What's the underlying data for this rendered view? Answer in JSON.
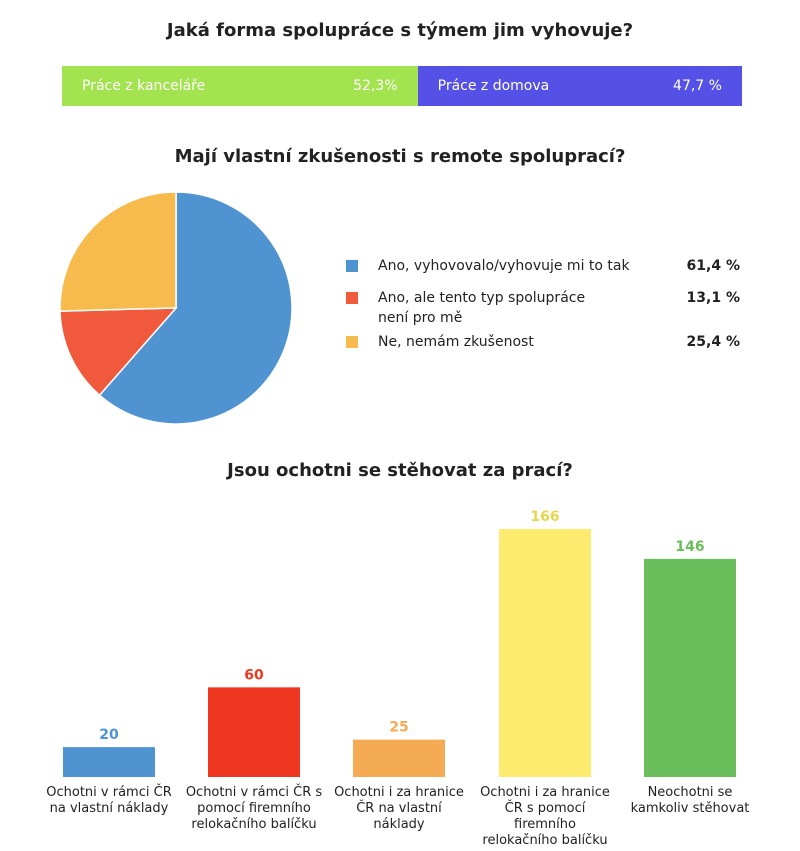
{
  "chart_data": [
    {
      "type": "bar",
      "orientation": "horizontal-stacked",
      "title": "Jaká forma spolupráce s týmem jim vyhovuje?",
      "categories": [
        "Práce z kanceláře",
        "Práce z domova"
      ],
      "values": [
        52.3,
        47.7
      ],
      "value_labels": [
        "52,3%",
        "47,7 %"
      ],
      "colors": [
        "#a3e34f",
        "#5551e6"
      ]
    },
    {
      "type": "pie",
      "title": "Mají vlastní zkušenosti s remote spoluprací?",
      "categories": [
        "Ano, vyhovovalo/vyhovuje mi to tak",
        "Ano, ale tento typ spolupráce není pro mě",
        "Ne, nemám zkušenost"
      ],
      "values": [
        61.4,
        13.1,
        25.4
      ],
      "value_labels": [
        "61,4 %",
        "13,1 %",
        "25,4 %"
      ],
      "colors": [
        "#4f93d1",
        "#f0593b",
        "#f7bb4d"
      ],
      "legend_position": "right"
    },
    {
      "type": "bar",
      "title": "Jsou ochotni se stěhovat za prací?",
      "categories": [
        "Ochotni v rámci ČR na vlastní náklady",
        "Ochotni v rámci ČR s pomocí firemního relokačního balíčku",
        "Ochotni i za hranice ČR na vlastní náklady",
        "Ochotni i za hranice ČR s pomocí firemního relokačního balíčku",
        "Neochotni se kamkoliv stěhovat"
      ],
      "values": [
        20,
        60,
        25,
        166,
        146
      ],
      "colors": [
        "#4f93d1",
        "#ef3620",
        "#f4ab53",
        "#fdeb6f",
        "#69bd5a"
      ],
      "label_colors": [
        "#4f93d1",
        "#ef3620",
        "#f4ab53",
        "#e8d74c",
        "#69bd5a"
      ],
      "ylim": [
        0,
        166
      ]
    }
  ]
}
